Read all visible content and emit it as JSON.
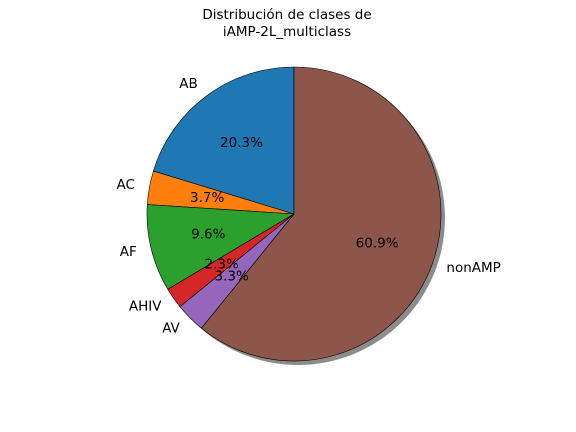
{
  "chart_data": {
    "type": "pie",
    "title_lines": [
      "Distribución de clases de",
      "iAMP-2L_multiclass"
    ],
    "labels": [
      "AB",
      "AC",
      "AF",
      "AHIV",
      "AV",
      "nonAMP"
    ],
    "values": [
      20.3,
      3.7,
      9.6,
      2.3,
      3.3,
      60.9
    ],
    "percent_labels": [
      "20.3%",
      "3.7%",
      "9.6%",
      "2.3%",
      "3.3%",
      "60.9%"
    ],
    "colors": [
      "#1f77b4",
      "#ff7f0e",
      "#2ca02c",
      "#d62728",
      "#9467bd",
      "#8c564b"
    ],
    "start_angle_deg": 90,
    "shadow": true,
    "edge_color": "#000000"
  }
}
